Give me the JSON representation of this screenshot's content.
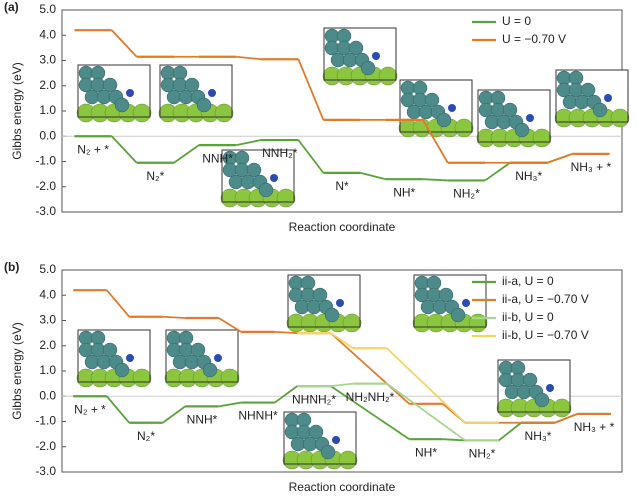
{
  "chart_data": [
    {
      "type": "step",
      "label": "(a)",
      "xlabel": "Reaction coordinate",
      "ylabel": "Gibbs energy (eV)",
      "categories": [
        "N₂ + *",
        "N₂*",
        "NNH*",
        "NNH₂*",
        "N*",
        "NH*",
        "NH₂*",
        "NH₃*",
        "NH₃ + *"
      ],
      "series": [
        {
          "name": "U = 0",
          "color": "#5aa33a",
          "values": [
            0,
            -1.05,
            -0.35,
            -0.15,
            -1.45,
            -1.7,
            -1.75,
            -1.05,
            -0.7
          ]
        },
        {
          "name": "U = −0.70 V",
          "color": "#e07b2a",
          "values": [
            4.2,
            3.15,
            3.15,
            3.05,
            0.65,
            0.65,
            -1.05,
            -1.05,
            -0.7
          ]
        }
      ],
      "ylim": [
        -3,
        5
      ],
      "yticks": [
        {
          "value": -3,
          "label": "-3.0"
        },
        {
          "value": -2,
          "label": "-2.0"
        },
        {
          "value": -1,
          "label": "-1.0"
        },
        {
          "value": 0,
          "label": "0.0"
        },
        {
          "value": 1,
          "label": "1.0"
        },
        {
          "value": 2,
          "label": "2.0"
        },
        {
          "value": 3,
          "label": "3.0"
        },
        {
          "value": 4,
          "label": "4.0"
        },
        {
          "value": 5,
          "label": "5.0"
        }
      ],
      "legend": "upper right"
    },
    {
      "type": "step",
      "label": "(b)",
      "xlabel": "Reaction coordinate",
      "ylabel": "Gibbs energy (eV)",
      "categories": [
        "N₂ + *",
        "N₂*",
        "NNH*",
        "NHNH*",
        "NHNH₂*",
        "NH₂NH₂*",
        "NH*",
        "NH₂*",
        "NH₃*",
        "NH₃ + *"
      ],
      "series": [
        {
          "name": "ii-a, U = 0",
          "color": "#5aa33a",
          "values": [
            0,
            -1.05,
            -0.4,
            -0.25,
            0.4,
            null,
            -1.7,
            -1.75,
            -1.05,
            -0.7
          ]
        },
        {
          "name": "ii-a, U = −0.70 V",
          "color": "#e07b2a",
          "values": [
            4.2,
            3.15,
            3.1,
            2.55,
            2.5,
            null,
            -0.3,
            -1.05,
            -1.05,
            -0.7
          ]
        },
        {
          "name": "ii-b, U = 0",
          "color": "#a9d48f",
          "values": [
            null,
            null,
            null,
            null,
            0.4,
            0.5,
            null,
            -1.75,
            null,
            null
          ]
        },
        {
          "name": "ii-b, U = −0.70 V",
          "color": "#f3d36b",
          "values": [
            null,
            null,
            null,
            null,
            2.5,
            1.9,
            null,
            -1.05,
            null,
            null
          ]
        }
      ],
      "ylim": [
        -3,
        5
      ],
      "yticks": [
        {
          "value": -3,
          "label": "-3.0"
        },
        {
          "value": -2,
          "label": "-2.0"
        },
        {
          "value": -1,
          "label": "-1.0"
        },
        {
          "value": 0,
          "label": "0.0"
        },
        {
          "value": 1,
          "label": "1.0"
        },
        {
          "value": 2,
          "label": "2.0"
        },
        {
          "value": 3,
          "label": "3.0"
        },
        {
          "value": 4,
          "label": "4.0"
        },
        {
          "value": 5,
          "label": "5.0"
        }
      ],
      "legend": "upper right"
    }
  ]
}
